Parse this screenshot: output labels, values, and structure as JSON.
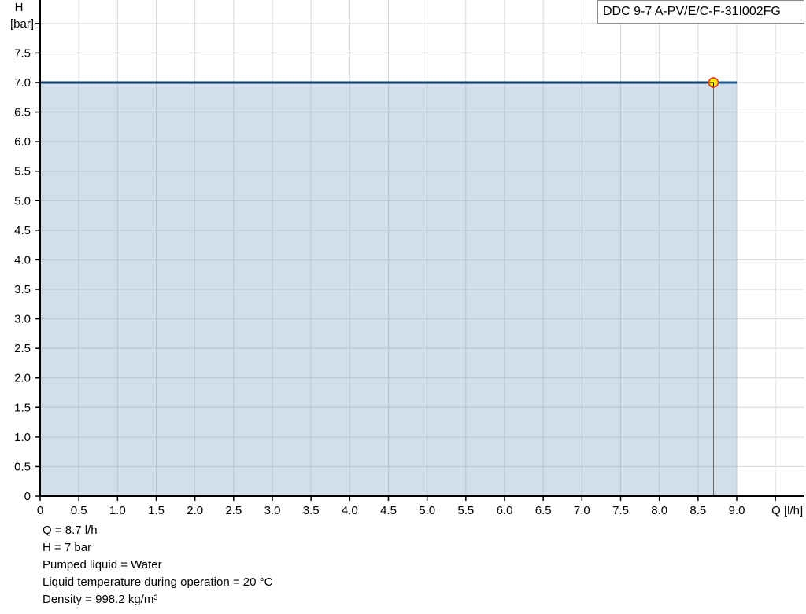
{
  "chart_data": {
    "type": "area",
    "title": "",
    "xlabel": "Q [l/h]",
    "ylabel_line1": "H",
    "ylabel_line2": "[bar]",
    "xlim": [
      0,
      9.5
    ],
    "ylim": [
      0,
      8.0
    ],
    "x_ticks": [
      "0",
      "0.5",
      "1.0",
      "1.5",
      "2.0",
      "2.5",
      "3.0",
      "3.5",
      "4.0",
      "4.5",
      "5.0",
      "5.5",
      "6.0",
      "6.5",
      "7.0",
      "7.5",
      "8.0",
      "8.5",
      "9.0"
    ],
    "y_ticks": [
      "0",
      "0.5",
      "1.0",
      "1.5",
      "2.0",
      "2.5",
      "3.0",
      "3.5",
      "4.0",
      "4.5",
      "5.0",
      "5.5",
      "6.0",
      "6.5",
      "7.0",
      "7.5"
    ],
    "grid": true,
    "legend_position": "top-right",
    "series": [
      {
        "name": "DDC 9-7 A-PV/E/C-F-31I002FG",
        "x": [
          0,
          9.0
        ],
        "y": [
          7.0,
          7.0
        ],
        "color": "#0d3d6e",
        "fill": "#d0dce7"
      }
    ],
    "operating_point": {
      "x": 8.7,
      "y": 7.0,
      "fill": "#ffee00",
      "stroke": "#e02020"
    }
  },
  "info": [
    "Q = 8.7 l/h",
    "H = 7 bar",
    "Pumped liquid = Water",
    "Liquid temperature during operation = 20 °C",
    "Density = 998.2 kg/m³"
  ]
}
